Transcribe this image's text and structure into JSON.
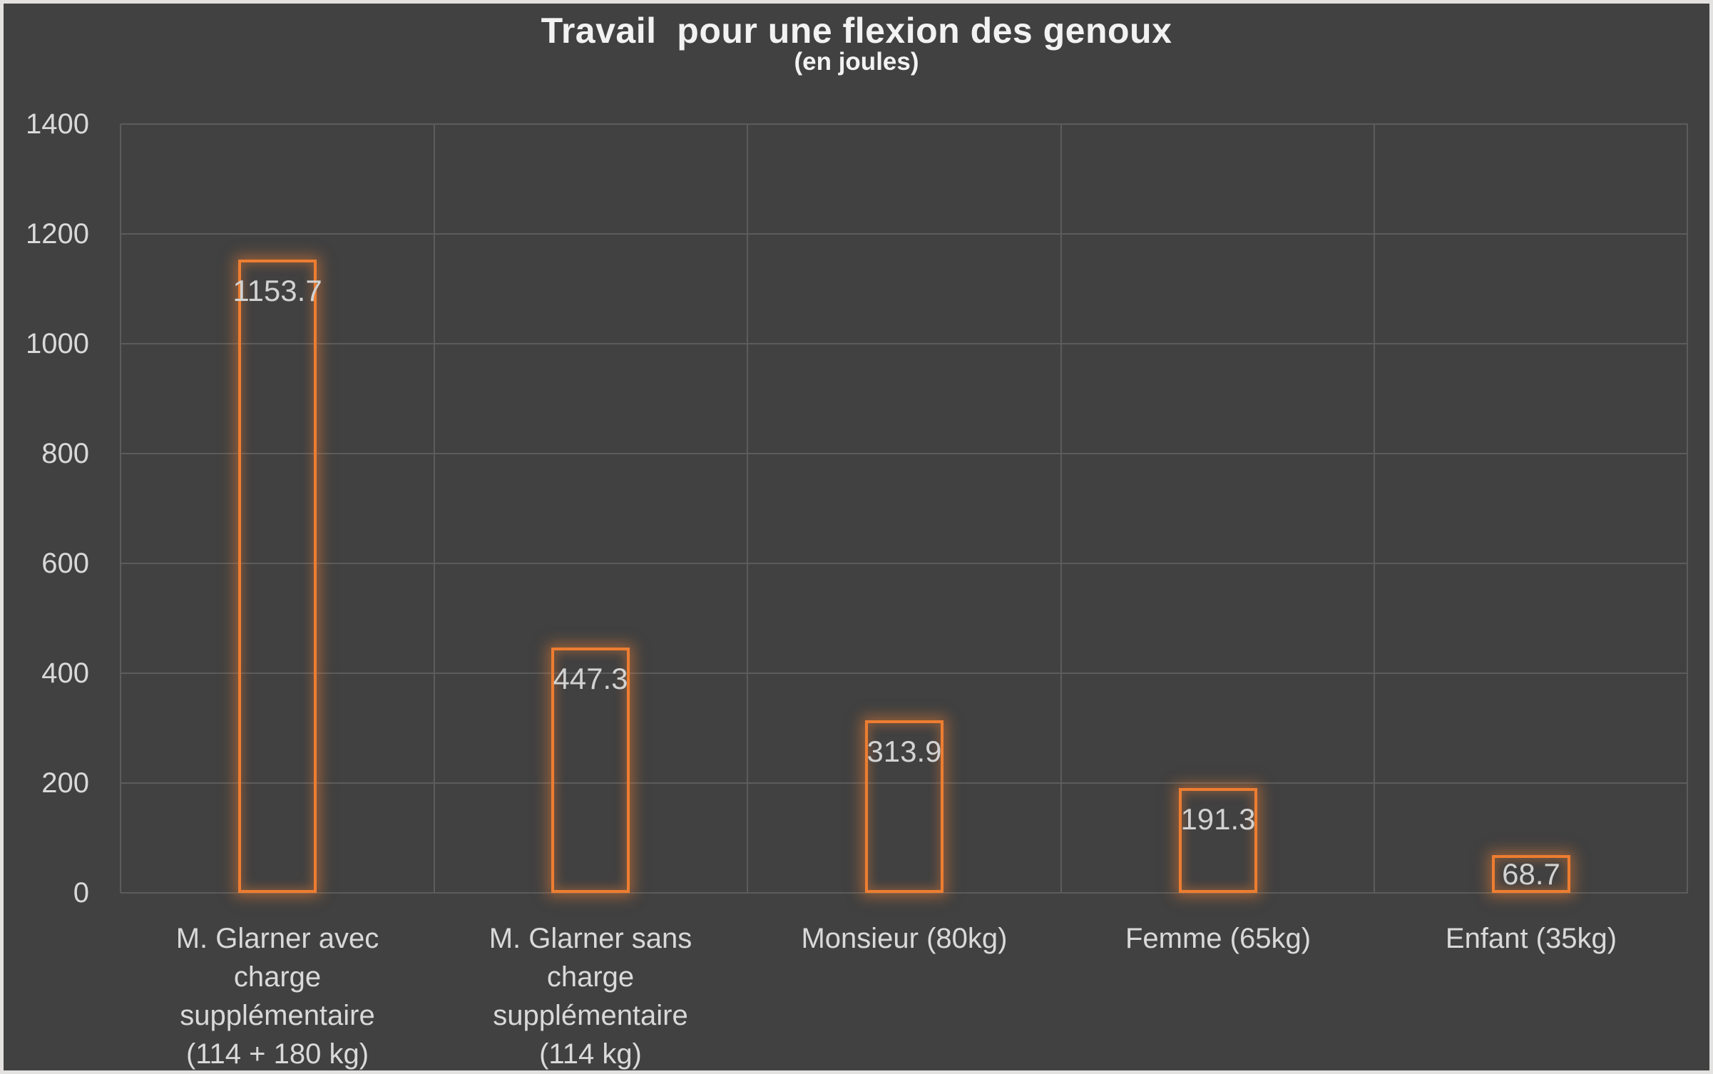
{
  "header": {
    "title": "Travail  pour une flexion des genoux",
    "subtitle": "(en joules)"
  },
  "chart_data": {
    "type": "bar",
    "title": "Travail pour une flexion des genoux",
    "subtitle": "(en joules)",
    "categories": [
      "M. Glarner avec charge supplémentaire (114 + 180 kg)",
      "M. Glarner sans charge supplémentaire (114 kg)",
      "Monsieur (80kg)",
      "Femme (65kg)",
      "Enfant (35kg)"
    ],
    "values": [
      1153.7,
      447.3,
      313.9,
      191.3,
      68.7
    ],
    "value_labels": [
      "1153.7",
      "447.3",
      "313.9",
      "191.3",
      "68.7"
    ],
    "xlabel": "",
    "ylabel": "",
    "ylim": [
      0,
      1400
    ],
    "ytick_step": 200,
    "yticks": [
      0,
      200,
      400,
      600,
      800,
      1000,
      1200,
      1400
    ],
    "grid": true,
    "legend": false,
    "bar_style": "outline-only, transparent fill, orange glow"
  },
  "colors": {
    "background": "#414141",
    "frame_border": "#e4e2e1",
    "gridline": "#5c5c5c",
    "axis_text": "#d9d9d9",
    "title_text": "#f2f2f2",
    "data_label_text": "#d2d2d2",
    "bar_outline": "#ed7d31",
    "bar_glow": "rgba(237,125,49,0.5)"
  }
}
